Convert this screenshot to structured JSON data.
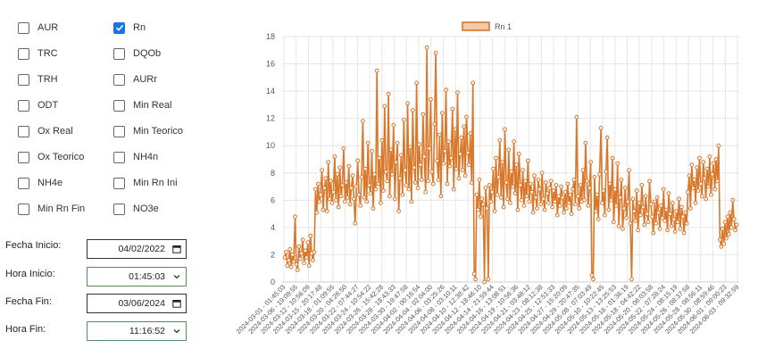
{
  "checkboxes": [
    {
      "label": "AUR",
      "checked": false
    },
    {
      "label": "Rn",
      "checked": true
    },
    {
      "label": "TRC",
      "checked": false
    },
    {
      "label": "DQOb",
      "checked": false
    },
    {
      "label": "TRH",
      "checked": false
    },
    {
      "label": "AURr",
      "checked": false
    },
    {
      "label": "ODT",
      "checked": false
    },
    {
      "label": "Min Real",
      "checked": false
    },
    {
      "label": "Ox Real",
      "checked": false
    },
    {
      "label": "Min Teorico",
      "checked": false
    },
    {
      "label": "Ox Teorico",
      "checked": false
    },
    {
      "label": "NH4n",
      "checked": false
    },
    {
      "label": "NH4e",
      "checked": false
    },
    {
      "label": "Min Rn Ini",
      "checked": false
    },
    {
      "label": "Min Rn Fin",
      "checked": false
    },
    {
      "label": "NO3e",
      "checked": false
    }
  ],
  "form": {
    "fecha_inicio": {
      "label": "Fecha Inicio:",
      "value": "04/02/2022",
      "icon": "calendar-icon"
    },
    "hora_inicio": {
      "label": "Hora Inicio:",
      "value": "01:45:03",
      "icon": "chevron-down-icon"
    },
    "fecha_fin": {
      "label": "Fecha Fin:",
      "value": "03/06/2024",
      "icon": "calendar-icon"
    },
    "hora_fin": {
      "label": "Hora Fin:",
      "value": "11:16:52",
      "icon": "chevron-down-icon"
    }
  },
  "colors": {
    "series": "#d9772b",
    "checked": "#1a73e8",
    "grid": "#e6e6e6",
    "field_border": "#5a8a5a"
  },
  "chart_data": {
    "type": "line",
    "legend": "Rn 1",
    "legend_position": "top-center",
    "grid": true,
    "ylim": [
      0,
      18
    ],
    "yticks": [
      0,
      2,
      4,
      6,
      8,
      10,
      12,
      14,
      16,
      18
    ],
    "x_tick_labels": [
      "2024-03-01 - 01:45:03",
      "2024-03-06 - 19:09:55",
      "2024-03-12 - 10:56:09",
      "2024-03-15 - 20:17:48",
      "2024-03-18 - 01:09:55",
      "2024-03-20 - 04:26:50",
      "2024-03-22 - 07:44:27",
      "2024-03-24 - 10:54:22",
      "2024-03-26 - 15:42:28",
      "2024-03-28 - 18:43:33",
      "2024-03-30 - 19:47:58",
      "2024-04-02 - 00:16:54",
      "2024-04-04 - 02:04:00",
      "2024-04-06 - 03:25:26",
      "2024-04-08 - 03:10:11",
      "2024-04-10 - 12:38:42",
      "2024-04-12 - 18:46:10",
      "2024-04-14 - 21:59:44",
      "2024-04-16 - 13:08:51",
      "2024-04-19 - 10:56:36",
      "2024-04-21 - 03:48:12",
      "2024-04-23 - 08:12:38",
      "2024-04-25 - 12:51:33",
      "2024-04-27 - 15:20:09",
      "2024-04-29 - 20:47:35",
      "2024-05-08 - 07:03:49",
      "2024-05-10 - 10:22:45",
      "2024-05-13 - 13:25:53",
      "2024-05-16 - 01:36:19",
      "2024-05-18 - 04:42:22",
      "2024-05-20 - 06:03:58",
      "2024-05-22 - 07:28:24",
      "2024-05-24 - 08:15:19",
      "2024-05-26 - 08:37:58",
      "2024-05-28 - 08:56:11",
      "2024-05-30 - 08:59:46",
      "2024-06-01 - 09:00:23",
      "2024-06-03 - 09:32:59"
    ],
    "series": [
      {
        "name": "Rn 1",
        "values": [
          1.8,
          2.2,
          1.2,
          1.6,
          2.4,
          1.1,
          2.0,
          1.5,
          4.8,
          1.3,
          0.9,
          2.6,
          1.7,
          2.1,
          3.1,
          1.4,
          2.3,
          1.8,
          2.9,
          1.2,
          3.4,
          2.1,
          1.6,
          2.2,
          6.8,
          5.1,
          7.2,
          5.9,
          6.4,
          8.2,
          5.3,
          6.9,
          7.6,
          5.2,
          8.8,
          6.1,
          7.4,
          5.8,
          6.6,
          9.2,
          6.0,
          7.9,
          5.5,
          8.4,
          6.3,
          7.1,
          9.8,
          5.9,
          7.3,
          6.2,
          8.5,
          5.7,
          6.9,
          7.8,
          6.1,
          4.3,
          7.0,
          8.9,
          6.4,
          5.6,
          7.7,
          11.8,
          6.2,
          8.3,
          5.9,
          10.2,
          7.1,
          6.5,
          9.6,
          5.4,
          7.9,
          6.8,
          15.5,
          7.2,
          9.1,
          5.8,
          10.4,
          6.7,
          12.9,
          8.1,
          7.4,
          13.8,
          6.3,
          9.7,
          7.9,
          11.5,
          6.1,
          8.8,
          10.2,
          5.2,
          7.6,
          9.3,
          6.4,
          11.9,
          8.2,
          7.1,
          13.1,
          6.8,
          9.9,
          5.9,
          12.6,
          8.4,
          7.3,
          14.6,
          6.9,
          10.1,
          8.6,
          7.5,
          12.3,
          9.2,
          6.6,
          17.2,
          7.4,
          9.8,
          13.4,
          8.1,
          7.2,
          11.6,
          16.8,
          8.9,
          7.5,
          10.8,
          6.3,
          12.4,
          8.7,
          9.6,
          14.1,
          7.2,
          10.3,
          8.5,
          9.1,
          12.7,
          6.8,
          11.2,
          8.3,
          13.9,
          7.6,
          9.4,
          10.6,
          8.2,
          11.4,
          7.8,
          12.1,
          9.5,
          8.6,
          10.9,
          7.3,
          14.6,
          0.6,
          0.2,
          6.4,
          5.3,
          7.5,
          4.8,
          6.1,
          5.7,
          0.0,
          6.9,
          5.4,
          0.2,
          7.1,
          5.9,
          6.6,
          8.3,
          5.2,
          9.1,
          6.4,
          7.7,
          10.4,
          6.2,
          8.8,
          5.5,
          11.2,
          7.3,
          6.1,
          9.7,
          5.8,
          8.1,
          7.0,
          10.3,
          6.5,
          8.6,
          5.3,
          9.4,
          7.1,
          6.0,
          8.2,
          5.6,
          7.4,
          6.3,
          8.9,
          5.9,
          7.2,
          6.6,
          5.1,
          7.8,
          6.2,
          5.4,
          7.5,
          6.8,
          5.7,
          8.0,
          6.1,
          5.3,
          7.3,
          6.5,
          5.8,
          6.9,
          7.4,
          5.5,
          6.7,
          5.9,
          7.1,
          4.9,
          6.3,
          5.6,
          7.0,
          6.2,
          5.1,
          6.6,
          5.4,
          7.2,
          5.8,
          6.4,
          5.0,
          6.8,
          7.5,
          5.7,
          12.1,
          6.3,
          5.4,
          7.1,
          5.9,
          8.2,
          6.0,
          10.2,
          7.4,
          5.6,
          6.9,
          8.8,
          0.5,
          0.2,
          7.7,
          5.2,
          6.4,
          4.6,
          7.9,
          11.3,
          5.8,
          6.7,
          4.9,
          8.1,
          10.6,
          5.3,
          7.2,
          6.0,
          9.1,
          4.4,
          6.8,
          5.6,
          8.7,
          4.1,
          6.2,
          7.5,
          3.9,
          5.4,
          6.9,
          4.7,
          5.9,
          8.2,
          4.3,
          0.2,
          6.1,
          5.2,
          4.5,
          6.7,
          3.8,
          5.8,
          4.9,
          7.1,
          5.5,
          4.2,
          6.3,
          5.0,
          4.4,
          7.4,
          5.7,
          4.8,
          3.6,
          5.9,
          4.3,
          6.2,
          5.1,
          3.9,
          5.6,
          4.7,
          6.8,
          4.5,
          5.3,
          3.8,
          6.5,
          5.0,
          4.1,
          5.8,
          4.6,
          3.7,
          5.2,
          4.4,
          6.1,
          3.9,
          5.5,
          4.8,
          3.6,
          5.1,
          4.3,
          6.6,
          7.8,
          5.4,
          8.6,
          6.9,
          7.5,
          5.8,
          8.4,
          6.7,
          9.1,
          7.2,
          6.3,
          8.8,
          7.6,
          6.1,
          8.3,
          7.0,
          9.2,
          6.4,
          7.9,
          8.7,
          6.8,
          9.0,
          7.4,
          10.0,
          3.1,
          2.6,
          3.9,
          2.8,
          4.4,
          3.2,
          4.8,
          3.5,
          5.1,
          4.0,
          6.0,
          4.6,
          3.8,
          4.2
        ]
      }
    ]
  }
}
